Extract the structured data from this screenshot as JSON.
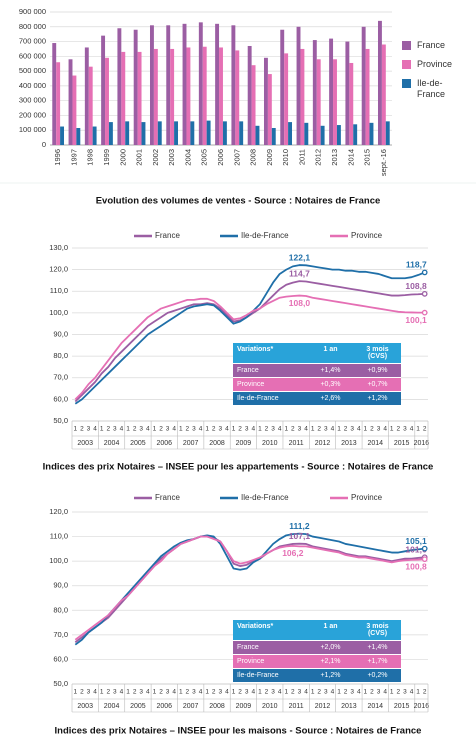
{
  "chart_data": [
    {
      "type": "bar",
      "caption": "Evolution des volumes de ventes - Source : Notaires de France",
      "categories": [
        "1996",
        "1997",
        "1998",
        "1999",
        "2000",
        "2001",
        "2002",
        "2003",
        "2004",
        "2005",
        "2006",
        "2007",
        "2008",
        "2009",
        "2010",
        "2011",
        "2012",
        "2013",
        "2014",
        "2015",
        "sept.-16"
      ],
      "series": [
        {
          "name": "France",
          "color": "#9b5ea3",
          "values": [
            690000,
            580000,
            660000,
            740000,
            790000,
            780000,
            810000,
            810000,
            820000,
            830000,
            820000,
            810000,
            670000,
            590000,
            780000,
            800000,
            710000,
            720000,
            700000,
            800000,
            840000
          ]
        },
        {
          "name": "Province",
          "color": "#e56fb4",
          "values": [
            560000,
            470000,
            530000,
            590000,
            630000,
            630000,
            650000,
            650000,
            660000,
            665000,
            660000,
            640000,
            540000,
            480000,
            620000,
            650000,
            580000,
            580000,
            555000,
            650000,
            680000
          ]
        },
        {
          "name": "Ile-de-France",
          "color": "#1f6fa8",
          "values": [
            125000,
            115000,
            125000,
            155000,
            160000,
            155000,
            160000,
            160000,
            160000,
            165000,
            160000,
            160000,
            130000,
            115000,
            155000,
            150000,
            130000,
            135000,
            140000,
            150000,
            160000
          ]
        }
      ],
      "ylim": [
        0,
        900000
      ],
      "yticks": [
        0,
        {
          "value": 100000,
          "label": "100 000"
        },
        {
          "value": 200000,
          "label": "200 000"
        },
        {
          "value": 300000,
          "label": "300 000"
        },
        {
          "value": 400000,
          "label": "400 000"
        },
        {
          "value": 500000,
          "label": "500 000"
        },
        {
          "value": 600000,
          "label": "600 000"
        },
        {
          "value": 700000,
          "label": "700 000"
        },
        {
          "value": 800000,
          "label": "800 000"
        },
        {
          "value": 900000,
          "label": "900 000"
        }
      ],
      "grid": true
    },
    {
      "type": "line",
      "caption": "Indices des prix Notaires – INSEE pour les appartements - Source : Notaires de France",
      "categories": [
        "1",
        "2",
        "3",
        "4",
        "1",
        "2",
        "3",
        "4",
        "1",
        "2",
        "3",
        "4",
        "1",
        "2",
        "3",
        "4",
        "1",
        "2",
        "3",
        "4",
        "1",
        "2",
        "3",
        "4",
        "1",
        "2",
        "3",
        "4",
        "1",
        "2",
        "3",
        "4",
        "1",
        "2",
        "3",
        "4",
        "1",
        "2",
        "3",
        "4",
        "1",
        "2",
        "3",
        "4",
        "1",
        "2",
        "3",
        "4",
        "1",
        "2",
        "3",
        "4",
        "1",
        "2"
      ],
      "x_groups": [
        "2003",
        "2004",
        "2005",
        "2006",
        "2007",
        "2008",
        "2009",
        "2010",
        "2011",
        "2012",
        "2013",
        "2014",
        "2015",
        "2016"
      ],
      "series": [
        {
          "name": "France",
          "color": "#9b5ea3",
          "values": [
            59,
            62,
            65,
            68,
            72,
            75,
            79,
            82,
            85,
            88,
            91,
            94,
            96,
            98,
            100,
            101,
            102,
            103,
            104,
            104,
            104.5,
            104,
            102,
            99,
            96,
            96.5,
            98,
            100,
            102,
            105,
            108,
            111,
            113,
            114,
            114.7,
            114.5,
            114,
            113.5,
            113,
            112.5,
            112,
            111.5,
            111,
            110.5,
            110,
            109.5,
            109,
            108.5,
            108,
            108,
            108.2,
            108.5,
            108.6,
            108.8
          ],
          "value_labels": [
            null,
            null,
            null,
            null,
            null,
            null,
            null,
            null,
            null,
            null,
            null,
            null,
            null,
            null,
            null,
            null,
            null,
            null,
            null,
            null,
            null,
            null,
            null,
            null,
            null,
            null,
            null,
            null,
            null,
            null,
            null,
            null,
            null,
            null,
            "114,7",
            null,
            null,
            null,
            null,
            null,
            null,
            null,
            null,
            null,
            null,
            null,
            null,
            null,
            null,
            null,
            null,
            null,
            null,
            "108,8"
          ]
        },
        {
          "name": "Ile-de-France",
          "color": "#1f6fa8",
          "values": [
            58,
            60,
            63,
            66,
            69,
            72,
            75,
            78,
            81,
            84,
            87,
            90,
            92,
            94,
            96,
            98,
            100,
            102,
            103,
            103.5,
            104,
            103.5,
            101,
            98,
            95,
            96,
            98,
            101,
            104,
            109,
            114,
            118,
            120,
            121.5,
            122.1,
            122,
            121.5,
            121,
            120.5,
            120,
            120,
            119.5,
            119.5,
            119,
            119,
            118.5,
            118,
            117,
            116,
            116,
            116,
            116.5,
            117.5,
            118.7
          ],
          "value_labels": [
            null,
            null,
            null,
            null,
            null,
            null,
            null,
            null,
            null,
            null,
            null,
            null,
            null,
            null,
            null,
            null,
            null,
            null,
            null,
            null,
            null,
            null,
            null,
            null,
            null,
            null,
            null,
            null,
            null,
            null,
            null,
            null,
            null,
            null,
            "122,1",
            null,
            null,
            null,
            null,
            null,
            null,
            null,
            null,
            null,
            null,
            null,
            null,
            null,
            null,
            null,
            null,
            null,
            null,
            "118,7"
          ]
        },
        {
          "name": "Province",
          "color": "#e56fb4",
          "values": [
            60,
            63,
            67,
            70,
            74,
            78,
            82,
            86,
            89,
            92,
            95,
            98,
            100,
            102,
            103,
            104,
            105,
            106,
            106,
            106.5,
            106.5,
            105.5,
            103,
            100,
            97,
            97.5,
            99,
            101,
            102,
            104,
            105.5,
            107,
            107.5,
            107.8,
            108.0,
            107.8,
            107,
            106.5,
            106,
            105.5,
            105,
            104.5,
            104,
            103.5,
            103,
            102.5,
            102,
            101.5,
            101,
            100.5,
            100.3,
            100.2,
            100.1,
            100.1
          ],
          "value_labels": [
            null,
            null,
            null,
            null,
            null,
            null,
            null,
            null,
            null,
            null,
            null,
            null,
            null,
            null,
            null,
            null,
            null,
            null,
            null,
            null,
            null,
            null,
            null,
            null,
            null,
            null,
            null,
            null,
            null,
            null,
            null,
            null,
            null,
            null,
            "108,0",
            null,
            null,
            null,
            null,
            null,
            null,
            null,
            null,
            null,
            null,
            null,
            null,
            null,
            null,
            null,
            null,
            null,
            null,
            "100,1"
          ]
        }
      ],
      "ylim": [
        50,
        130
      ],
      "yticks": [
        {
          "value": 50,
          "label": "50,0"
        },
        {
          "value": 60,
          "label": "60,0"
        },
        {
          "value": 70,
          "label": "70,0"
        },
        {
          "value": 80,
          "label": "80,0"
        },
        {
          "value": 90,
          "label": "90,0"
        },
        {
          "value": 100,
          "label": "100,0"
        },
        {
          "value": 110,
          "label": "110,0"
        },
        {
          "value": 120,
          "label": "120,0"
        },
        {
          "value": 130,
          "label": "130,0"
        }
      ],
      "grid": true,
      "table": {
        "header": [
          "Variations*",
          "1 an",
          "3 mois (CVS)"
        ],
        "rows": [
          [
            "France",
            "+1,4%",
            "+0,9%"
          ],
          [
            "Province",
            "+0,3%",
            "+0,7%"
          ],
          [
            "Ile-de-France",
            "+2,6%",
            "+1,2%"
          ]
        ]
      }
    },
    {
      "type": "line",
      "caption": "Indices des prix Notaires – INSEE pour les maisons - Source : Notaires de France",
      "categories": [
        "1",
        "2",
        "3",
        "4",
        "1",
        "2",
        "3",
        "4",
        "1",
        "2",
        "3",
        "4",
        "1",
        "2",
        "3",
        "4",
        "1",
        "2",
        "3",
        "4",
        "1",
        "2",
        "3",
        "4",
        "1",
        "2",
        "3",
        "4",
        "1",
        "2",
        "3",
        "4",
        "1",
        "2",
        "3",
        "4",
        "1",
        "2",
        "3",
        "4",
        "1",
        "2",
        "3",
        "4",
        "1",
        "2",
        "3",
        "4",
        "1",
        "2",
        "3",
        "4",
        "1",
        "2"
      ],
      "x_groups": [
        "2003",
        "2004",
        "2005",
        "2006",
        "2007",
        "2008",
        "2009",
        "2010",
        "2011",
        "2012",
        "2013",
        "2014",
        "2015",
        "2016"
      ],
      "series": [
        {
          "name": "France",
          "color": "#9b5ea3",
          "values": [
            67,
            69,
            71,
            73,
            75,
            77,
            80,
            83,
            86,
            89,
            92,
            95,
            98,
            101,
            103,
            105,
            107,
            108,
            109,
            110,
            110,
            109.5,
            108,
            104,
            99,
            98,
            98.5,
            100,
            101,
            103,
            104.5,
            106,
            106.5,
            107,
            107.1,
            107,
            106,
            105.5,
            105,
            104.5,
            104,
            103,
            102.5,
            102,
            102,
            101.5,
            101,
            100.5,
            100,
            100.5,
            101,
            101,
            101.3,
            101.6
          ],
          "value_labels": [
            null,
            null,
            null,
            null,
            null,
            null,
            null,
            null,
            null,
            null,
            null,
            null,
            null,
            null,
            null,
            null,
            null,
            null,
            null,
            null,
            null,
            null,
            null,
            null,
            null,
            null,
            null,
            null,
            null,
            null,
            null,
            null,
            null,
            null,
            "107,1",
            null,
            null,
            null,
            null,
            null,
            null,
            null,
            null,
            null,
            null,
            null,
            null,
            null,
            null,
            null,
            null,
            null,
            null,
            "101,6"
          ]
        },
        {
          "name": "Ile-de-France",
          "color": "#1f6fa8",
          "values": [
            66,
            68,
            71,
            73,
            75,
            78,
            81,
            84,
            87,
            90,
            93,
            96,
            99,
            102,
            104,
            106,
            107.5,
            108.5,
            109,
            110,
            110.5,
            110,
            107,
            102,
            97,
            96.5,
            97,
            99.5,
            101,
            104,
            107,
            109,
            110.5,
            111,
            111.2,
            111,
            110,
            109.5,
            109,
            108.5,
            108,
            107,
            106.5,
            106,
            105.5,
            105,
            104.5,
            104,
            103.5,
            103.5,
            104,
            104.5,
            104.8,
            105.1
          ],
          "value_labels": [
            null,
            null,
            null,
            null,
            null,
            null,
            null,
            null,
            null,
            null,
            null,
            null,
            null,
            null,
            null,
            null,
            null,
            null,
            null,
            null,
            null,
            null,
            null,
            null,
            null,
            null,
            null,
            null,
            null,
            null,
            null,
            null,
            null,
            null,
            "111,2",
            null,
            null,
            null,
            null,
            null,
            null,
            null,
            null,
            null,
            null,
            null,
            null,
            null,
            null,
            null,
            null,
            null,
            null,
            "105,1"
          ]
        },
        {
          "name": "Province",
          "color": "#e56fb4",
          "values": [
            68,
            70,
            72,
            74,
            76,
            78,
            81,
            84,
            86,
            89,
            92,
            95,
            98,
            100,
            103,
            105,
            107,
            108,
            109,
            110,
            110,
            109,
            108,
            104,
            100,
            99,
            99.5,
            100.5,
            101.5,
            103,
            104.5,
            105.5,
            106,
            106.2,
            106,
            106,
            105.5,
            105,
            104.5,
            104,
            103.5,
            102.5,
            102,
            101.5,
            101.5,
            101,
            100.5,
            100,
            99.5,
            100,
            100.3,
            100.5,
            100.6,
            100.8
          ],
          "value_labels": [
            null,
            null,
            null,
            null,
            null,
            null,
            null,
            null,
            null,
            null,
            null,
            null,
            null,
            null,
            null,
            null,
            null,
            null,
            null,
            null,
            null,
            null,
            null,
            null,
            null,
            null,
            null,
            null,
            null,
            null,
            null,
            null,
            null,
            "106,2",
            null,
            null,
            null,
            null,
            null,
            null,
            null,
            null,
            null,
            null,
            null,
            null,
            null,
            null,
            null,
            null,
            null,
            null,
            null,
            "100,8"
          ]
        }
      ],
      "ylim": [
        50,
        120
      ],
      "yticks": [
        {
          "value": 50,
          "label": "50,0"
        },
        {
          "value": 60,
          "label": "60,0"
        },
        {
          "value": 70,
          "label": "70,0"
        },
        {
          "value": 80,
          "label": "80,0"
        },
        {
          "value": 90,
          "label": "90,0"
        },
        {
          "value": 100,
          "label": "100,0"
        },
        {
          "value": 110,
          "label": "110,0"
        },
        {
          "value": 120,
          "label": "120,0"
        }
      ],
      "grid": true,
      "table": {
        "header": [
          "Variations*",
          "1 an",
          "3 mois (CVS)"
        ],
        "rows": [
          [
            "France",
            "+2,0%",
            "+1,4%"
          ],
          [
            "Province",
            "+2,1%",
            "+1,7%"
          ],
          [
            "Ile-de-France",
            "+1,2%",
            "+0,2%"
          ]
        ]
      }
    }
  ]
}
